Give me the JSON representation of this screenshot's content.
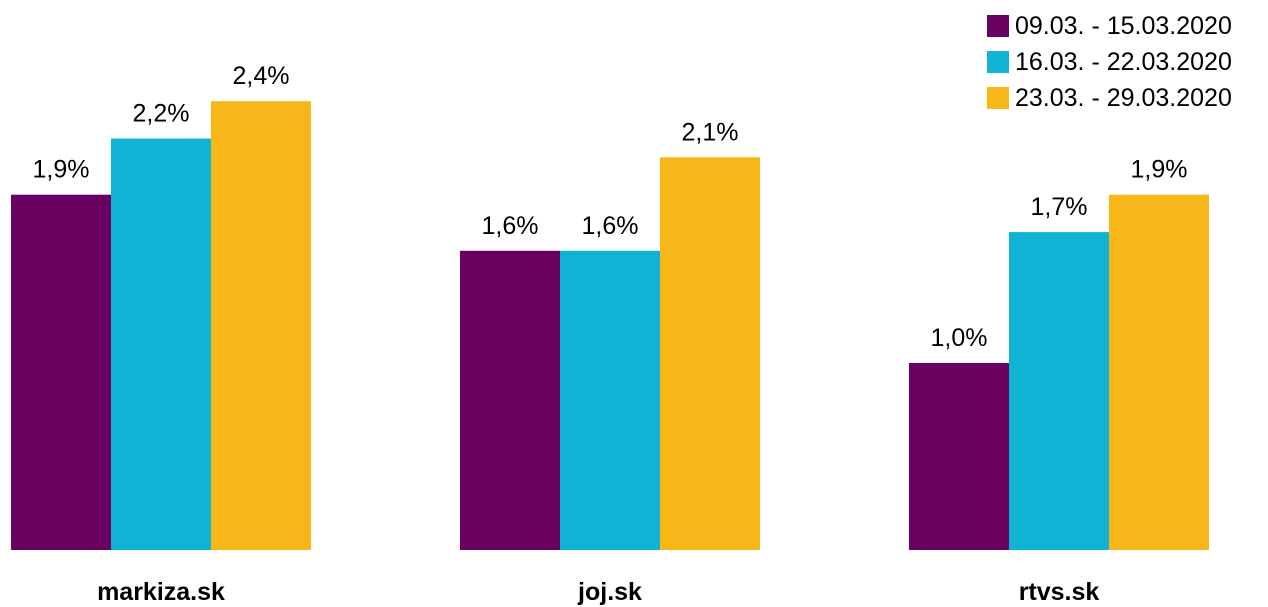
{
  "chart_data": {
    "type": "bar",
    "title": "",
    "categories": [
      "markiza.sk",
      "joj.sk",
      "rtvs.sk"
    ],
    "series": [
      {
        "name": "09.03. - 15.03.2020",
        "color": "#6a005f",
        "values": [
          1.9,
          1.6,
          1.0
        ],
        "labels": [
          "1,9%",
          "1,6%",
          "1,0%"
        ]
      },
      {
        "name": "16.03. - 22.03.2020",
        "color": "#0fb3d3",
        "values": [
          2.2,
          1.6,
          1.7
        ],
        "labels": [
          "2,2%",
          "1,6%",
          "1,7%"
        ]
      },
      {
        "name": "23.03. - 29.03.2020",
        "color": "#f8b719",
        "values": [
          2.4,
          2.1,
          1.9
        ],
        "labels": [
          "2,4%",
          "2,1%",
          "1,9%"
        ]
      }
    ],
    "xlabel": "",
    "ylabel": "",
    "ylim": [
      0,
      2.5
    ],
    "grid": false,
    "legend_position": "top-right"
  }
}
